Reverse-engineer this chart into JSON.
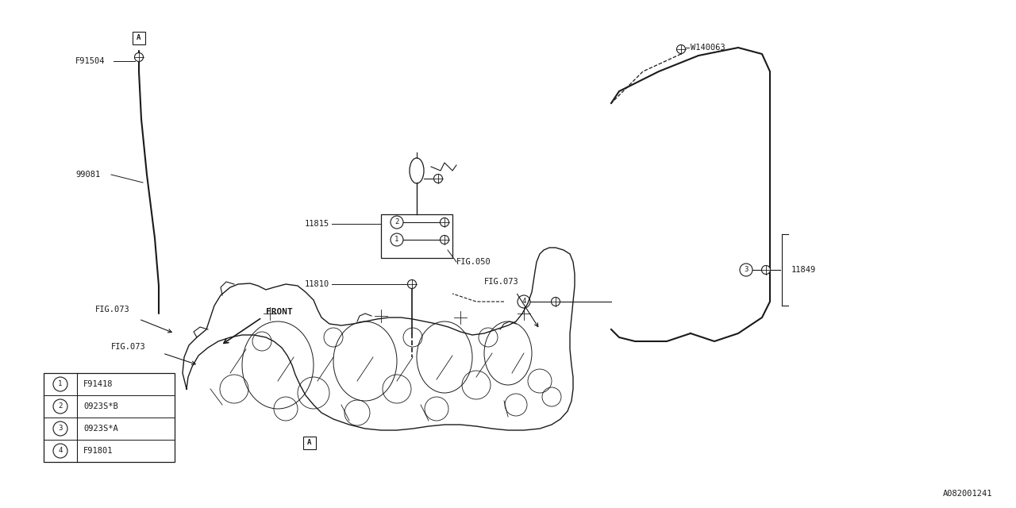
{
  "bg_color": "#ffffff",
  "line_color": "#1a1a1a",
  "fig_id": "A082001241",
  "legend_items": [
    {
      "num": "1",
      "code": "F91418"
    },
    {
      "num": "2",
      "code": "0923S*B"
    },
    {
      "num": "3",
      "code": "0923S*A"
    },
    {
      "num": "4",
      "code": "F91801"
    }
  ]
}
